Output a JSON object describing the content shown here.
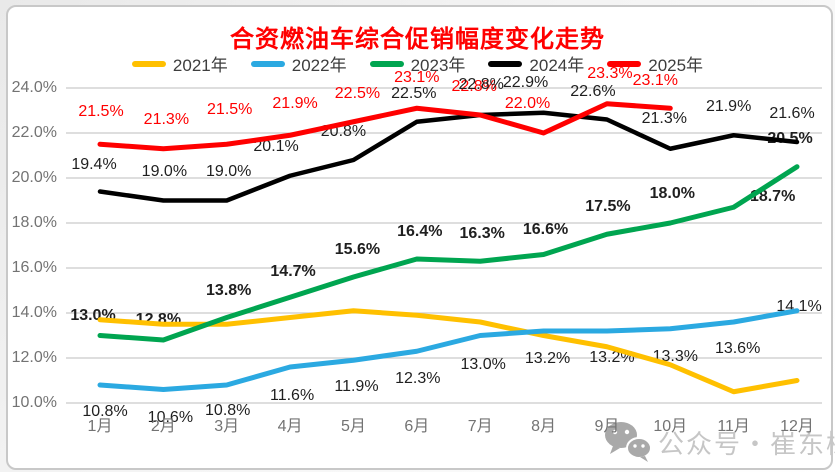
{
  "title": "合资燃油车综合促销幅度变化走势",
  "watermark": {
    "text": "公众号・崔东树",
    "icon": "wechat-icon",
    "text_color": "#C6C6C6",
    "icon_color": "#A9A9A9"
  },
  "colors": {
    "title": "#FF0000",
    "grid": "#C9C9C9",
    "axis_text": "#737373",
    "data_label_text": "#1F1F1F",
    "legend_text": "#3D3D3D",
    "card_border": "#C8C8C8",
    "background": "#FFFFFF"
  },
  "chart_data": {
    "type": "line",
    "title": "合资燃油车综合促销幅度变化走势",
    "x": [
      "1月",
      "2月",
      "3月",
      "4月",
      "5月",
      "6月",
      "7月",
      "8月",
      "9月",
      "10月",
      "11月",
      "12月"
    ],
    "y_ticks": [
      "24.0%",
      "22.0%",
      "20.0%",
      "18.0%",
      "16.0%",
      "14.0%",
      "12.0%",
      "10.0%"
    ],
    "ylim": [
      10,
      24
    ],
    "unit": "%",
    "grid": true,
    "legend_position": "top",
    "series": [
      {
        "name": "2021年",
        "color": "#FFC000",
        "values": [
          13.7,
          13.5,
          13.5,
          13.8,
          14.1,
          13.9,
          13.6,
          13.0,
          12.5,
          11.7,
          10.5,
          11.0
        ],
        "show_labels": false,
        "label_color": null,
        "bold_labels": false
      },
      {
        "name": "2022年",
        "color": "#2BA9E1",
        "values": [
          10.8,
          10.6,
          10.8,
          11.6,
          11.9,
          12.3,
          13.0,
          13.2,
          13.2,
          13.3,
          13.6,
          14.1
        ],
        "show_labels": true,
        "label_color": "#1F1F1F",
        "bold_labels": false
      },
      {
        "name": "2023年",
        "color": "#00A550",
        "values": [
          13.0,
          12.8,
          13.8,
          14.7,
          15.6,
          16.4,
          16.3,
          16.6,
          17.5,
          18.0,
          18.7,
          20.5
        ],
        "show_labels": true,
        "label_color": "#1F1F1F",
        "bold_labels": true
      },
      {
        "name": "2024年",
        "color": "#000000",
        "values": [
          19.4,
          19.0,
          19.0,
          20.1,
          20.8,
          22.5,
          22.8,
          22.9,
          22.6,
          21.3,
          21.9,
          21.6
        ],
        "show_labels": true,
        "label_color": "#1F1F1F",
        "bold_labels": false
      },
      {
        "name": "2025年",
        "color": "#FF0000",
        "values": [
          21.5,
          21.3,
          21.5,
          21.9,
          22.5,
          23.1,
          22.8,
          22.0,
          23.3,
          23.1
        ],
        "show_labels": true,
        "label_color": "#FF0000",
        "bold_labels": false
      }
    ]
  }
}
